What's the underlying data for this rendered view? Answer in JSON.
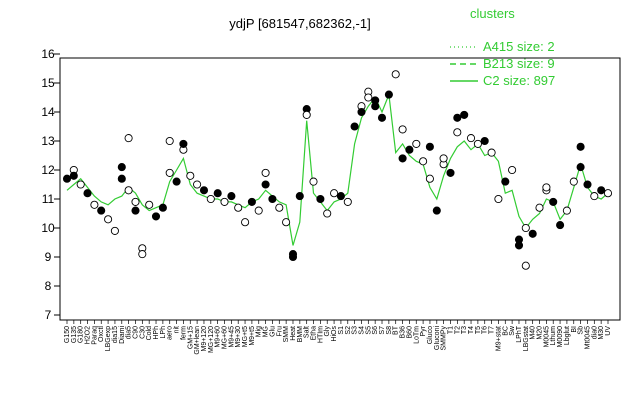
{
  "chart_data": {
    "type": "line",
    "title": "ydjP [681547,682362,-1]",
    "xlabel": "",
    "ylabel": "",
    "ylim": [
      7,
      16
    ],
    "yticks": [
      7,
      8,
      9,
      10,
      11,
      12,
      13,
      14,
      15,
      16
    ],
    "grid": false,
    "legend_placement": "top-right",
    "legend": {
      "title": "clusters",
      "entries": [
        {
          "label": "A415 size: 2",
          "style": "dotted"
        },
        {
          "label": "B213 size: 9",
          "style": "dashed"
        },
        {
          "label": "C2 size: 897",
          "style": "solid"
        }
      ]
    },
    "colors": {
      "series_line": "#33cc33",
      "legend_text": "#33cc33",
      "point_fill_dark": "#000000",
      "point_fill_light": "#ffffff"
    },
    "x_tick_labels": [
      "G150",
      "G135",
      "G180",
      "H2O2",
      "Paraq",
      "Oxctl",
      "LBGexp",
      "dia15",
      "Diami",
      "dia5",
      "C90",
      "C30",
      "Cold",
      "HPh",
      "LPh",
      "aero",
      "nit",
      "ferm",
      "GM+15",
      "GM+lean",
      "M9+120",
      "MG+120",
      "M9+60",
      "MG+60",
      "M9+45",
      "M9+30",
      "MG+t5",
      "M9+t5",
      "Mig",
      "MG",
      "Glu",
      "Fru",
      "SMM",
      "Heat",
      "BMM",
      "Salt",
      "Etha",
      "HTIm",
      "Gly",
      "HiOs",
      "S1",
      "S2",
      "S3",
      "S4",
      "S5",
      "S6",
      "S7",
      "S8",
      "BT",
      "B36",
      "B60",
      "LoTm",
      "Pyr",
      "Gluco",
      "GIuconi",
      "SMMPy",
      "T1",
      "T2",
      "T3",
      "T4",
      "T5",
      "T6",
      "T7",
      "M9+stat",
      "BC",
      "Sw",
      "LPhT",
      "LBGstat",
      "M40",
      "M20",
      "M0045",
      "Lthum",
      "M0090",
      "Lbglut",
      "BI",
      "Sb",
      "Mt0045",
      "dia0",
      "M30",
      "UV"
    ],
    "series": [
      {
        "name": "C2 size: 897",
        "values": [
          11.3,
          11.5,
          11.7,
          11.4,
          11.1,
          10.9,
          10.8,
          11.0,
          11.1,
          11.4,
          11.2,
          10.8,
          10.6,
          10.7,
          10.8,
          11.6,
          12.0,
          12.4,
          11.5,
          11.2,
          11.1,
          11.0,
          11.0,
          10.9,
          10.9,
          10.8,
          10.7,
          10.9,
          11.0,
          11.3,
          11.1,
          10.9,
          10.8,
          9.4,
          10.2,
          13.7,
          11.2,
          10.9,
          10.6,
          10.9,
          11.0,
          11.2,
          12.9,
          13.8,
          14.2,
          14.5,
          14.0,
          14.6,
          12.6,
          12.9,
          12.5,
          12.3,
          12.2,
          11.4,
          11.0,
          11.8,
          12.4,
          12.8,
          13.0,
          12.7,
          12.9,
          12.5,
          12.6,
          12.3,
          11.2,
          11.3,
          10.4,
          10.0,
          10.3,
          10.5,
          11.0,
          10.9,
          10.3,
          10.6,
          11.4,
          12.2,
          11.4,
          11.1,
          11.0,
          11.2
        ]
      }
    ],
    "points": [
      {
        "x": 0,
        "y": 11.7,
        "fill": "dark"
      },
      {
        "x": 1,
        "y": 12.0,
        "fill": "light"
      },
      {
        "x": 1,
        "y": 11.8,
        "fill": "dark"
      },
      {
        "x": 2,
        "y": 11.5,
        "fill": "light"
      },
      {
        "x": 3,
        "y": 11.2,
        "fill": "dark"
      },
      {
        "x": 4,
        "y": 10.8,
        "fill": "light"
      },
      {
        "x": 5,
        "y": 10.6,
        "fill": "dark"
      },
      {
        "x": 6,
        "y": 10.3,
        "fill": "light"
      },
      {
        "x": 7,
        "y": 9.9,
        "fill": "light"
      },
      {
        "x": 8,
        "y": 11.7,
        "fill": "dark"
      },
      {
        "x": 8,
        "y": 12.1,
        "fill": "dark"
      },
      {
        "x": 9,
        "y": 13.1,
        "fill": "light"
      },
      {
        "x": 9,
        "y": 11.3,
        "fill": "light"
      },
      {
        "x": 10,
        "y": 10.6,
        "fill": "dark"
      },
      {
        "x": 10,
        "y": 10.9,
        "fill": "light"
      },
      {
        "x": 11,
        "y": 9.3,
        "fill": "light"
      },
      {
        "x": 11,
        "y": 9.1,
        "fill": "light"
      },
      {
        "x": 12,
        "y": 10.8,
        "fill": "light"
      },
      {
        "x": 13,
        "y": 10.4,
        "fill": "dark"
      },
      {
        "x": 14,
        "y": 10.7,
        "fill": "dark"
      },
      {
        "x": 15,
        "y": 11.9,
        "fill": "light"
      },
      {
        "x": 15,
        "y": 13.0,
        "fill": "light"
      },
      {
        "x": 16,
        "y": 11.6,
        "fill": "dark"
      },
      {
        "x": 17,
        "y": 12.7,
        "fill": "light"
      },
      {
        "x": 17,
        "y": 12.9,
        "fill": "dark"
      },
      {
        "x": 18,
        "y": 11.8,
        "fill": "light"
      },
      {
        "x": 19,
        "y": 11.5,
        "fill": "light"
      },
      {
        "x": 20,
        "y": 11.3,
        "fill": "dark"
      },
      {
        "x": 21,
        "y": 11.0,
        "fill": "light"
      },
      {
        "x": 22,
        "y": 11.2,
        "fill": "dark"
      },
      {
        "x": 23,
        "y": 10.9,
        "fill": "light"
      },
      {
        "x": 24,
        "y": 11.1,
        "fill": "dark"
      },
      {
        "x": 25,
        "y": 10.7,
        "fill": "light"
      },
      {
        "x": 26,
        "y": 10.2,
        "fill": "light"
      },
      {
        "x": 27,
        "y": 10.9,
        "fill": "dark"
      },
      {
        "x": 28,
        "y": 10.6,
        "fill": "light"
      },
      {
        "x": 29,
        "y": 11.9,
        "fill": "light"
      },
      {
        "x": 29,
        "y": 11.5,
        "fill": "dark"
      },
      {
        "x": 30,
        "y": 11.0,
        "fill": "dark"
      },
      {
        "x": 31,
        "y": 10.7,
        "fill": "light"
      },
      {
        "x": 32,
        "y": 10.2,
        "fill": "light"
      },
      {
        "x": 33,
        "y": 9.1,
        "fill": "dark"
      },
      {
        "x": 33,
        "y": 9.0,
        "fill": "dark"
      },
      {
        "x": 34,
        "y": 11.1,
        "fill": "dark"
      },
      {
        "x": 35,
        "y": 14.1,
        "fill": "dark"
      },
      {
        "x": 35,
        "y": 13.9,
        "fill": "light"
      },
      {
        "x": 36,
        "y": 11.6,
        "fill": "light"
      },
      {
        "x": 37,
        "y": 11.0,
        "fill": "dark"
      },
      {
        "x": 38,
        "y": 10.5,
        "fill": "light"
      },
      {
        "x": 39,
        "y": 11.2,
        "fill": "light"
      },
      {
        "x": 40,
        "y": 11.1,
        "fill": "dark"
      },
      {
        "x": 41,
        "y": 10.9,
        "fill": "light"
      },
      {
        "x": 42,
        "y": 13.5,
        "fill": "dark"
      },
      {
        "x": 43,
        "y": 14.2,
        "fill": "light"
      },
      {
        "x": 43,
        "y": 14.0,
        "fill": "dark"
      },
      {
        "x": 44,
        "y": 14.7,
        "fill": "light"
      },
      {
        "x": 44,
        "y": 14.5,
        "fill": "light"
      },
      {
        "x": 45,
        "y": 14.2,
        "fill": "dark"
      },
      {
        "x": 45,
        "y": 14.4,
        "fill": "dark"
      },
      {
        "x": 46,
        "y": 13.8,
        "fill": "dark"
      },
      {
        "x": 47,
        "y": 14.6,
        "fill": "dark"
      },
      {
        "x": 48,
        "y": 15.3,
        "fill": "light"
      },
      {
        "x": 49,
        "y": 12.4,
        "fill": "dark"
      },
      {
        "x": 49,
        "y": 13.4,
        "fill": "light"
      },
      {
        "x": 50,
        "y": 12.7,
        "fill": "dark"
      },
      {
        "x": 51,
        "y": 12.9,
        "fill": "light"
      },
      {
        "x": 52,
        "y": 12.3,
        "fill": "light"
      },
      {
        "x": 53,
        "y": 12.8,
        "fill": "dark"
      },
      {
        "x": 53,
        "y": 11.7,
        "fill": "light"
      },
      {
        "x": 54,
        "y": 10.6,
        "fill": "dark"
      },
      {
        "x": 55,
        "y": 12.2,
        "fill": "light"
      },
      {
        "x": 55,
        "y": 12.4,
        "fill": "light"
      },
      {
        "x": 56,
        "y": 11.9,
        "fill": "dark"
      },
      {
        "x": 57,
        "y": 13.3,
        "fill": "light"
      },
      {
        "x": 57,
        "y": 13.8,
        "fill": "dark"
      },
      {
        "x": 58,
        "y": 13.9,
        "fill": "dark"
      },
      {
        "x": 59,
        "y": 13.1,
        "fill": "light"
      },
      {
        "x": 60,
        "y": 12.9,
        "fill": "light"
      },
      {
        "x": 61,
        "y": 13.0,
        "fill": "dark"
      },
      {
        "x": 62,
        "y": 12.6,
        "fill": "light"
      },
      {
        "x": 63,
        "y": 11.0,
        "fill": "light"
      },
      {
        "x": 64,
        "y": 11.6,
        "fill": "dark"
      },
      {
        "x": 65,
        "y": 12.0,
        "fill": "light"
      },
      {
        "x": 66,
        "y": 9.4,
        "fill": "dark"
      },
      {
        "x": 66,
        "y": 9.6,
        "fill": "dark"
      },
      {
        "x": 67,
        "y": 10.0,
        "fill": "light"
      },
      {
        "x": 67,
        "y": 8.7,
        "fill": "light"
      },
      {
        "x": 68,
        "y": 9.8,
        "fill": "dark"
      },
      {
        "x": 69,
        "y": 10.7,
        "fill": "light"
      },
      {
        "x": 70,
        "y": 11.3,
        "fill": "light"
      },
      {
        "x": 70,
        "y": 11.4,
        "fill": "light"
      },
      {
        "x": 71,
        "y": 10.9,
        "fill": "dark"
      },
      {
        "x": 72,
        "y": 10.1,
        "fill": "dark"
      },
      {
        "x": 73,
        "y": 10.6,
        "fill": "light"
      },
      {
        "x": 74,
        "y": 11.6,
        "fill": "light"
      },
      {
        "x": 75,
        "y": 12.8,
        "fill": "dark"
      },
      {
        "x": 75,
        "y": 12.1,
        "fill": "dark"
      },
      {
        "x": 76,
        "y": 11.5,
        "fill": "dark"
      },
      {
        "x": 77,
        "y": 11.1,
        "fill": "light"
      },
      {
        "x": 78,
        "y": 11.3,
        "fill": "dark"
      },
      {
        "x": 79,
        "y": 11.2,
        "fill": "light"
      }
    ]
  }
}
